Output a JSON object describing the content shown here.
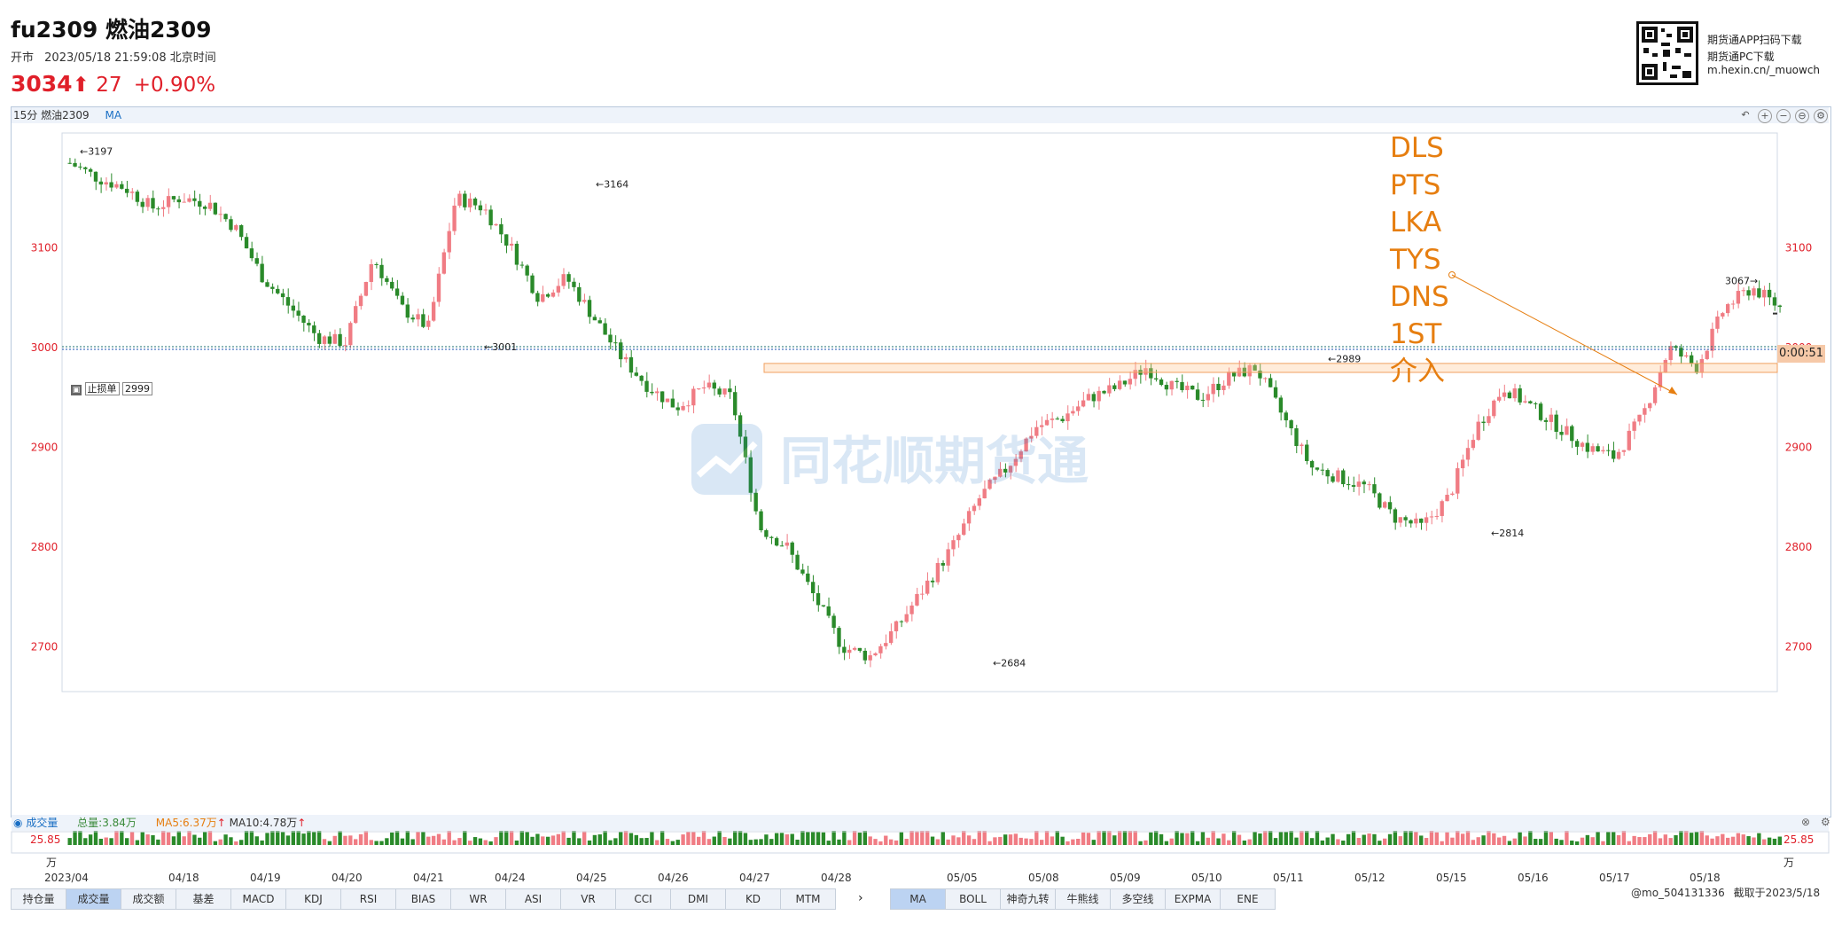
{
  "header": {
    "title": "fu2309 燃油2309",
    "market_status": "开市",
    "datetime": "2023/05/18 21:59:08 北京时间",
    "price": "3034",
    "change": "27",
    "change_pct": "+0.90%"
  },
  "qr": {
    "line1": "期货通APP扫码下载",
    "line2": "期货通PC下载",
    "line3": "m.hexin.cn/_muowch"
  },
  "chart": {
    "period": "15分",
    "instrument": "燃油2309",
    "indicator": "MA",
    "timer": "0:00:51",
    "stop_label": "止损单",
    "stop_value": "2999",
    "watermark": "同花顺期货通",
    "header_icons": [
      "undo-icon",
      "zoom-in-icon",
      "zoom-out-icon",
      "fit-icon",
      "settings-icon"
    ]
  },
  "chart_data": {
    "type": "candlestick",
    "y_ticks": [
      3100,
      3000,
      2900,
      2800,
      2700
    ],
    "ylim": [
      2655,
      3215
    ],
    "annotated_points": [
      {
        "label": "←3197",
        "value": 3197
      },
      {
        "label": "←3164",
        "value": 3164
      },
      {
        "label": "←3001",
        "value": 3001
      },
      {
        "label": "←2684",
        "value": 2684
      },
      {
        "label": "←2989",
        "value": 2989
      },
      {
        "label": "←2814",
        "value": 2814
      },
      {
        "label": "3067→",
        "value": 3067
      }
    ],
    "current_price_line": 2999,
    "resistance_zone": [
      2975,
      2984
    ],
    "x_labels": [
      "2023/04",
      "04/18",
      "04/19",
      "04/20",
      "04/21",
      "04/24",
      "04/25",
      "04/26",
      "04/27",
      "04/28",
      "05/05",
      "05/08",
      "05/09",
      "05/10",
      "05/11",
      "05/12",
      "05/15",
      "05/16",
      "05/17",
      "05/18"
    ],
    "approx_closes": [
      3185,
      3170,
      3160,
      3140,
      3150,
      3145,
      3120,
      3070,
      3040,
      3010,
      3005,
      3090,
      3040,
      3020,
      3150,
      3140,
      3100,
      3050,
      3070,
      3030,
      2990,
      2960,
      2940,
      2960,
      2950,
      2820,
      2800,
      2750,
      2700,
      2690,
      2720,
      2760,
      2800,
      2850,
      2880,
      2920,
      2930,
      2950,
      2960,
      2980,
      2960,
      2950,
      2970,
      2980,
      2930,
      2880,
      2870,
      2860,
      2830,
      2820,
      2850,
      2920,
      2960,
      2940,
      2920,
      2900,
      2890,
      2930,
      3000,
      2980,
      3040,
      3060,
      3040
    ]
  },
  "volume": {
    "title": "成交量",
    "total": "总量:3.84万",
    "ma5": "MA5:6.37万",
    "ma10": "MA10:4.78万",
    "max_label": "25.85",
    "unit": "万"
  },
  "bottom_tabs_left": [
    "持仓量",
    "成交量",
    "成交额",
    "基差",
    "MACD",
    "KDJ",
    "RSI",
    "BIAS",
    "WR",
    "ASI",
    "VR",
    "CCI",
    "DMI",
    "KD",
    "MTM"
  ],
  "bottom_tabs_right": [
    "MA",
    "BOLL",
    "神奇九转",
    "牛熊线",
    "多空线",
    "EXPMA",
    "ENE"
  ],
  "annotation_text": [
    "DLS",
    "PTS",
    "LKA",
    "TYS",
    "DNS",
    "1ST",
    "介入"
  ],
  "footer": {
    "user": "@mo_504131336",
    "capture": "截取于2023/5/18"
  },
  "colors": {
    "up": "#f07c84",
    "down": "#2a8a2a",
    "accent": "#e67e10",
    "price": "#e0202a"
  }
}
